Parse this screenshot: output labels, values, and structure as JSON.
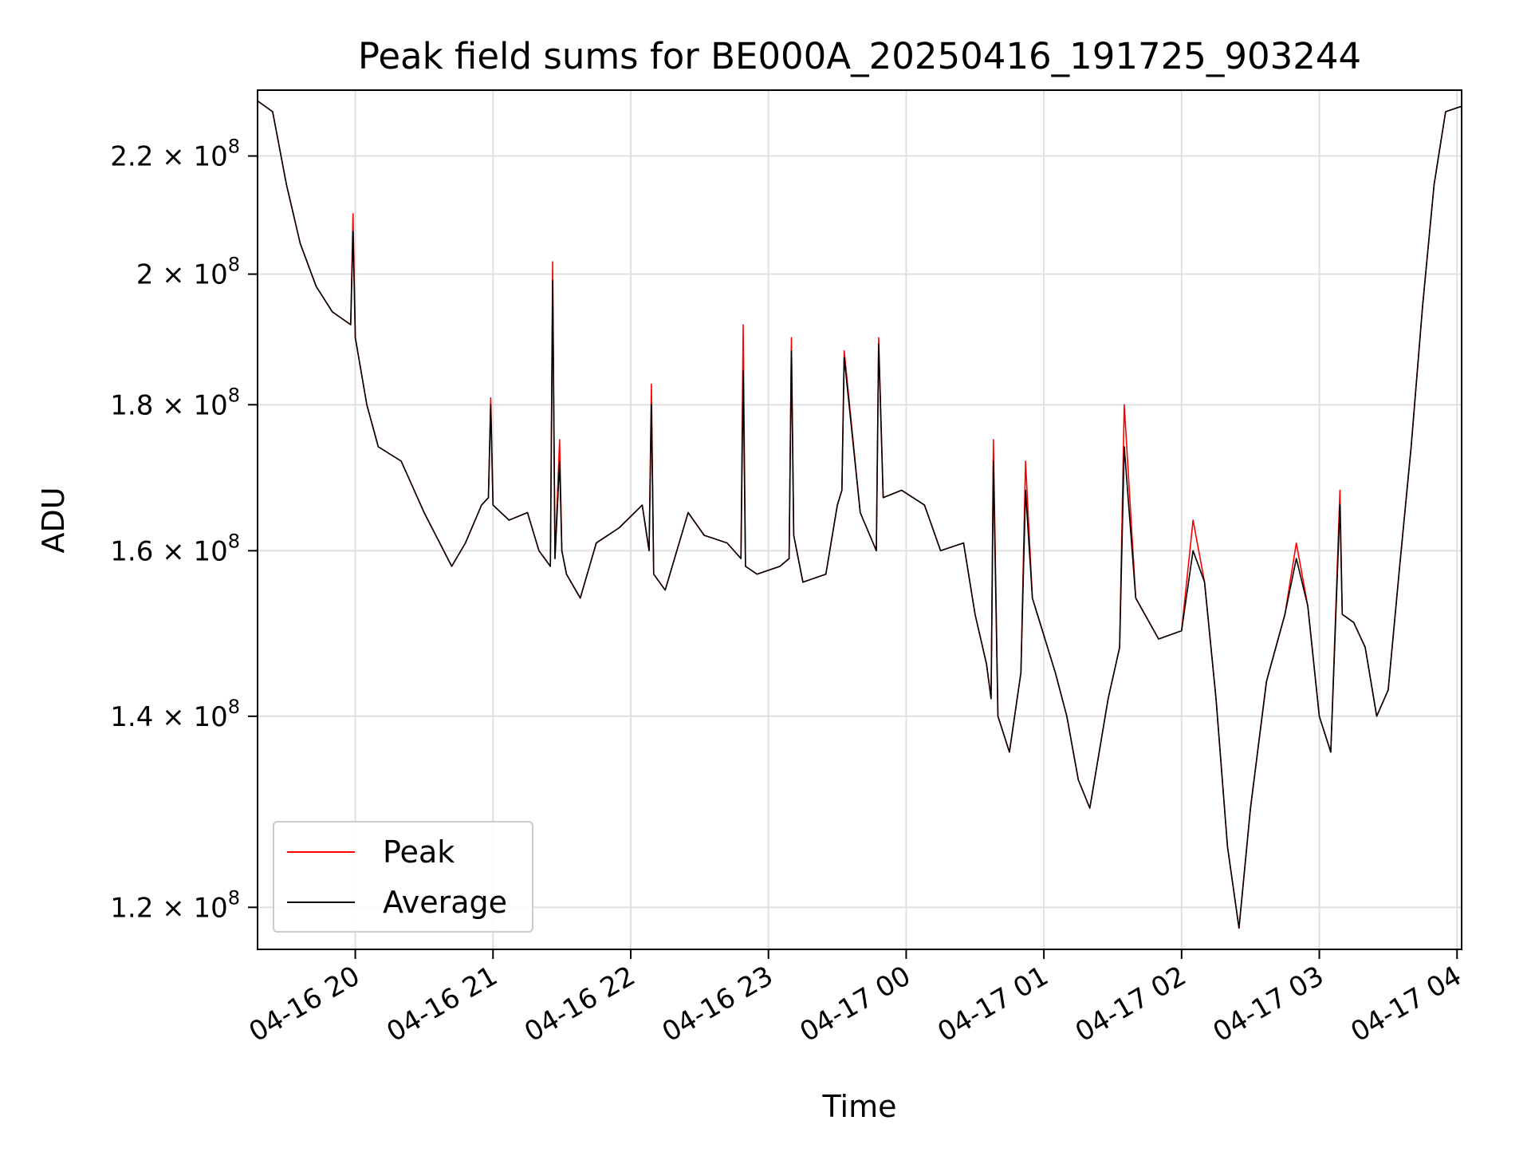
{
  "chart_data": {
    "type": "line",
    "title": "Peak field sums for BE000A_20250416_191725_903244",
    "xlabel": "Time",
    "ylabel": "ADU",
    "yscale": "log",
    "grid": true,
    "legend_position": "lower-left",
    "xlim": [
      "2025-04-16 19:17:25",
      "2025-04-17 04:02:00"
    ],
    "ylim": [
      116000000,
      232000000
    ],
    "x_ticks": [
      "04-16 20",
      "04-16 21",
      "04-16 22",
      "04-16 23",
      "04-17 00",
      "04-17 01",
      "04-17 02",
      "04-17 03",
      "04-17 04"
    ],
    "x_tick_values": [
      "2025-04-16 20:00",
      "2025-04-16 21:00",
      "2025-04-16 22:00",
      "2025-04-16 23:00",
      "2025-04-17 00:00",
      "2025-04-17 01:00",
      "2025-04-17 02:00",
      "2025-04-17 03:00",
      "2025-04-17 04:00"
    ],
    "y_ticks": [
      {
        "value": 120000000,
        "mantissa": "1.2",
        "base": "10",
        "exponent": "8"
      },
      {
        "value": 140000000,
        "mantissa": "1.4",
        "base": "10",
        "exponent": "8"
      },
      {
        "value": 160000000,
        "mantissa": "1.6",
        "base": "10",
        "exponent": "8"
      },
      {
        "value": 180000000,
        "mantissa": "1.8",
        "base": "10",
        "exponent": "8"
      },
      {
        "value": 200000000,
        "mantissa": "2",
        "base": "10",
        "exponent": "8"
      },
      {
        "value": 220000000,
        "mantissa": "2.2",
        "base": "10",
        "exponent": "8"
      }
    ],
    "legend": [
      "Peak",
      "Average"
    ],
    "colors": {
      "Peak": "#ff0000",
      "Average": "#000000",
      "grid": "#e0e0e0",
      "axes": "#000000"
    },
    "series": [
      {
        "name": "Peak",
        "color": "#ff0000",
        "x": [
          "2025-04-16 19:17",
          "2025-04-16 19:24",
          "2025-04-16 19:30",
          "2025-04-16 19:36",
          "2025-04-16 19:43",
          "2025-04-16 19:50",
          "2025-04-16 19:58",
          "2025-04-16 19:59",
          "2025-04-16 20:00",
          "2025-04-16 20:05",
          "2025-04-16 20:10",
          "2025-04-16 20:20",
          "2025-04-16 20:30",
          "2025-04-16 20:42",
          "2025-04-16 20:48",
          "2025-04-16 20:55",
          "2025-04-16 20:58",
          "2025-04-16 20:59",
          "2025-04-16 21:00",
          "2025-04-16 21:07",
          "2025-04-16 21:15",
          "2025-04-16 21:20",
          "2025-04-16 21:25",
          "2025-04-16 21:26",
          "2025-04-16 21:27",
          "2025-04-16 21:29",
          "2025-04-16 21:30",
          "2025-04-16 21:32",
          "2025-04-16 21:38",
          "2025-04-16 21:45",
          "2025-04-16 21:55",
          "2025-04-16 22:05",
          "2025-04-16 22:08",
          "2025-04-16 22:09",
          "2025-04-16 22:10",
          "2025-04-16 22:15",
          "2025-04-16 22:25",
          "2025-04-16 22:32",
          "2025-04-16 22:42",
          "2025-04-16 22:48",
          "2025-04-16 22:49",
          "2025-04-16 22:50",
          "2025-04-16 22:55",
          "2025-04-16 23:05",
          "2025-04-16 23:09",
          "2025-04-16 23:10",
          "2025-04-16 23:11",
          "2025-04-16 23:15",
          "2025-04-16 23:25",
          "2025-04-16 23:30",
          "2025-04-16 23:32",
          "2025-04-16 23:33",
          "2025-04-16 23:40",
          "2025-04-16 23:47",
          "2025-04-16 23:48",
          "2025-04-16 23:50",
          "2025-04-16 23:58",
          "2025-04-17 00:08",
          "2025-04-17 00:15",
          "2025-04-17 00:25",
          "2025-04-17 00:30",
          "2025-04-17 00:35",
          "2025-04-17 00:37",
          "2025-04-17 00:38",
          "2025-04-17 00:40",
          "2025-04-17 00:45",
          "2025-04-17 00:50",
          "2025-04-17 00:52",
          "2025-04-17 00:55",
          "2025-04-17 01:05",
          "2025-04-17 01:10",
          "2025-04-17 01:15",
          "2025-04-17 01:20",
          "2025-04-17 01:28",
          "2025-04-17 01:33",
          "2025-04-17 01:35",
          "2025-04-17 01:40",
          "2025-04-17 01:50",
          "2025-04-17 02:00",
          "2025-04-17 02:05",
          "2025-04-17 02:10",
          "2025-04-17 02:15",
          "2025-04-17 02:20",
          "2025-04-17 02:25",
          "2025-04-17 02:30",
          "2025-04-17 02:37",
          "2025-04-17 02:45",
          "2025-04-17 02:50",
          "2025-04-17 02:55",
          "2025-04-17 03:00",
          "2025-04-17 03:05",
          "2025-04-17 03:09",
          "2025-04-17 03:10",
          "2025-04-17 03:15",
          "2025-04-17 03:20",
          "2025-04-17 03:25",
          "2025-04-17 03:30",
          "2025-04-17 03:35",
          "2025-04-17 03:40",
          "2025-04-17 03:45",
          "2025-04-17 03:50",
          "2025-04-17 03:55",
          "2025-04-17 04:02"
        ],
        "y": [
          230000000,
          228000000,
          215000000,
          205000000,
          198000000,
          194000000,
          192000000,
          210000000,
          190000000,
          180000000,
          174000000,
          172000000,
          165000000,
          158000000,
          161000000,
          166000000,
          167000000,
          181000000,
          166000000,
          164000000,
          165000000,
          160000000,
          158000000,
          202000000,
          159000000,
          175000000,
          160000000,
          157000000,
          154000000,
          161000000,
          163000000,
          166000000,
          160000000,
          183000000,
          157000000,
          155000000,
          165000000,
          162000000,
          161000000,
          159000000,
          192000000,
          158000000,
          157000000,
          158000000,
          159000000,
          190000000,
          162000000,
          156000000,
          157000000,
          166000000,
          168000000,
          188000000,
          165000000,
          160000000,
          190000000,
          167000000,
          168000000,
          166000000,
          160000000,
          161000000,
          152000000,
          146000000,
          142000000,
          175000000,
          140000000,
          136000000,
          145000000,
          172000000,
          154000000,
          145000000,
          140000000,
          133000000,
          130000000,
          142000000,
          148000000,
          180000000,
          154000000,
          149000000,
          150000000,
          164000000,
          156000000,
          142000000,
          126000000,
          118000000,
          130000000,
          144000000,
          152000000,
          161000000,
          153000000,
          140000000,
          136000000,
          168000000,
          152000000,
          151000000,
          148000000,
          140000000,
          143000000,
          158000000,
          174000000,
          195000000,
          215000000,
          228000000,
          229000000
        ]
      },
      {
        "name": "Average",
        "color": "#000000",
        "x": [
          "2025-04-16 19:17",
          "2025-04-16 19:24",
          "2025-04-16 19:30",
          "2025-04-16 19:36",
          "2025-04-16 19:43",
          "2025-04-16 19:50",
          "2025-04-16 19:58",
          "2025-04-16 19:59",
          "2025-04-16 20:00",
          "2025-04-16 20:05",
          "2025-04-16 20:10",
          "2025-04-16 20:20",
          "2025-04-16 20:30",
          "2025-04-16 20:42",
          "2025-04-16 20:48",
          "2025-04-16 20:55",
          "2025-04-16 20:58",
          "2025-04-16 20:59",
          "2025-04-16 21:00",
          "2025-04-16 21:07",
          "2025-04-16 21:15",
          "2025-04-16 21:20",
          "2025-04-16 21:25",
          "2025-04-16 21:26",
          "2025-04-16 21:27",
          "2025-04-16 21:29",
          "2025-04-16 21:30",
          "2025-04-16 21:32",
          "2025-04-16 21:38",
          "2025-04-16 21:45",
          "2025-04-16 21:55",
          "2025-04-16 22:05",
          "2025-04-16 22:08",
          "2025-04-16 22:09",
          "2025-04-16 22:10",
          "2025-04-16 22:15",
          "2025-04-16 22:25",
          "2025-04-16 22:32",
          "2025-04-16 22:42",
          "2025-04-16 22:48",
          "2025-04-16 22:49",
          "2025-04-16 22:50",
          "2025-04-16 22:55",
          "2025-04-16 23:05",
          "2025-04-16 23:09",
          "2025-04-16 23:10",
          "2025-04-16 23:11",
          "2025-04-16 23:15",
          "2025-04-16 23:25",
          "2025-04-16 23:30",
          "2025-04-16 23:32",
          "2025-04-16 23:33",
          "2025-04-16 23:40",
          "2025-04-16 23:47",
          "2025-04-16 23:48",
          "2025-04-16 23:50",
          "2025-04-16 23:58",
          "2025-04-17 00:08",
          "2025-04-17 00:15",
          "2025-04-17 00:25",
          "2025-04-17 00:30",
          "2025-04-17 00:35",
          "2025-04-17 00:37",
          "2025-04-17 00:38",
          "2025-04-17 00:40",
          "2025-04-17 00:45",
          "2025-04-17 00:50",
          "2025-04-17 00:52",
          "2025-04-17 00:55",
          "2025-04-17 01:05",
          "2025-04-17 01:10",
          "2025-04-17 01:15",
          "2025-04-17 01:20",
          "2025-04-17 01:28",
          "2025-04-17 01:33",
          "2025-04-17 01:35",
          "2025-04-17 01:40",
          "2025-04-17 01:50",
          "2025-04-17 02:00",
          "2025-04-17 02:05",
          "2025-04-17 02:10",
          "2025-04-17 02:15",
          "2025-04-17 02:20",
          "2025-04-17 02:25",
          "2025-04-17 02:30",
          "2025-04-17 02:37",
          "2025-04-17 02:45",
          "2025-04-17 02:50",
          "2025-04-17 02:55",
          "2025-04-17 03:00",
          "2025-04-17 03:05",
          "2025-04-17 03:09",
          "2025-04-17 03:10",
          "2025-04-17 03:15",
          "2025-04-17 03:20",
          "2025-04-17 03:25",
          "2025-04-17 03:30",
          "2025-04-17 03:35",
          "2025-04-17 03:40",
          "2025-04-17 03:45",
          "2025-04-17 03:50",
          "2025-04-17 03:55",
          "2025-04-17 04:02"
        ],
        "y": [
          230000000,
          228000000,
          215000000,
          205000000,
          198000000,
          194000000,
          192000000,
          207000000,
          190000000,
          180000000,
          174000000,
          172000000,
          165000000,
          158000000,
          161000000,
          166000000,
          167000000,
          180000000,
          166000000,
          164000000,
          165000000,
          160000000,
          158000000,
          199000000,
          159000000,
          172000000,
          160000000,
          157000000,
          154000000,
          161000000,
          163000000,
          166000000,
          160000000,
          180000000,
          157000000,
          155000000,
          165000000,
          162000000,
          161000000,
          159000000,
          185000000,
          158000000,
          157000000,
          158000000,
          159000000,
          188000000,
          162000000,
          156000000,
          157000000,
          166000000,
          168000000,
          187000000,
          165000000,
          160000000,
          189000000,
          167000000,
          168000000,
          166000000,
          160000000,
          161000000,
          152000000,
          146000000,
          142000000,
          172000000,
          140000000,
          136000000,
          145000000,
          168000000,
          154000000,
          145000000,
          140000000,
          133000000,
          130000000,
          142000000,
          148000000,
          174000000,
          154000000,
          149000000,
          150000000,
          160000000,
          156000000,
          142000000,
          126000000,
          118000000,
          130000000,
          144000000,
          152000000,
          159000000,
          153000000,
          140000000,
          136000000,
          166000000,
          152000000,
          151000000,
          148000000,
          140000000,
          143000000,
          158000000,
          174000000,
          195000000,
          215000000,
          228000000,
          229000000
        ]
      }
    ]
  }
}
